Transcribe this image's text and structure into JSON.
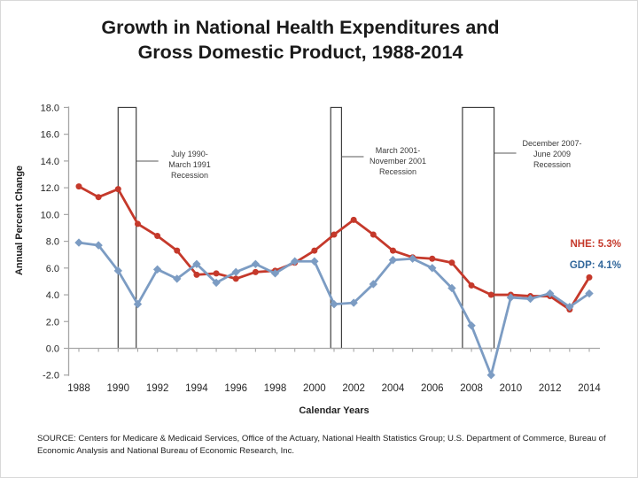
{
  "title": {
    "line1": "Growth in National Health Expenditures and",
    "line2": "Gross Domestic Product, 1988-2014"
  },
  "source": "SOURCE: Centers for Medicare & Medicaid Services, Office of the Actuary, National Health Statistics Group;  U.S. Department of Commerce, Bureau of Economic Analysis and National Bureau of Economic Research, Inc.",
  "chart_data": {
    "type": "line",
    "xlabel": "Calendar Years",
    "ylabel": "Annual Percent Change",
    "ylim": [
      -2.0,
      18.0
    ],
    "ytick_step": 2.0,
    "grid": false,
    "x": [
      1988,
      1989,
      1990,
      1991,
      1992,
      1993,
      1994,
      1995,
      1996,
      1997,
      1998,
      1999,
      2000,
      2001,
      2002,
      2003,
      2004,
      2005,
      2006,
      2007,
      2008,
      2009,
      2010,
      2011,
      2012,
      2013,
      2014
    ],
    "xticks": [
      1988,
      1990,
      1992,
      1994,
      1996,
      1998,
      2000,
      2002,
      2004,
      2006,
      2008,
      2010,
      2012,
      2014
    ],
    "series": [
      {
        "name": "NHE",
        "color": "#c5392b",
        "label_color": "#c5392b",
        "marker": "circle",
        "end_label": "NHE: 5.3%",
        "values": [
          12.1,
          11.3,
          11.9,
          9.3,
          8.4,
          7.3,
          5.5,
          5.6,
          5.2,
          5.7,
          5.8,
          6.4,
          7.3,
          8.5,
          9.6,
          8.5,
          7.3,
          6.8,
          6.7,
          6.4,
          4.7,
          4.0,
          4.0,
          3.9,
          3.9,
          2.9,
          5.3
        ]
      },
      {
        "name": "GDP",
        "color": "#7c9cc3",
        "label_color": "#31679b",
        "marker": "diamond",
        "end_label": "GDP: 4.1%",
        "values": [
          7.9,
          7.7,
          5.8,
          3.3,
          5.9,
          5.2,
          6.3,
          4.9,
          5.7,
          6.3,
          5.6,
          6.5,
          6.5,
          3.3,
          3.4,
          4.8,
          6.6,
          6.7,
          6.0,
          4.5,
          1.7,
          -2.0,
          3.8,
          3.7,
          4.1,
          3.1,
          4.1
        ]
      }
    ],
    "recessions": [
      {
        "label_lines": [
          "July 1990-",
          "March 1991",
          "Recession"
        ],
        "start": 1990.0,
        "end": 1990.92
      },
      {
        "label_lines": [
          "March 2001-",
          "November 2001",
          "Recession"
        ],
        "start": 2000.83,
        "end": 2001.38
      },
      {
        "label_lines": [
          "December 2007-",
          "June 2009",
          "Recession"
        ],
        "start": 2007.54,
        "end": 2009.15
      }
    ]
  }
}
